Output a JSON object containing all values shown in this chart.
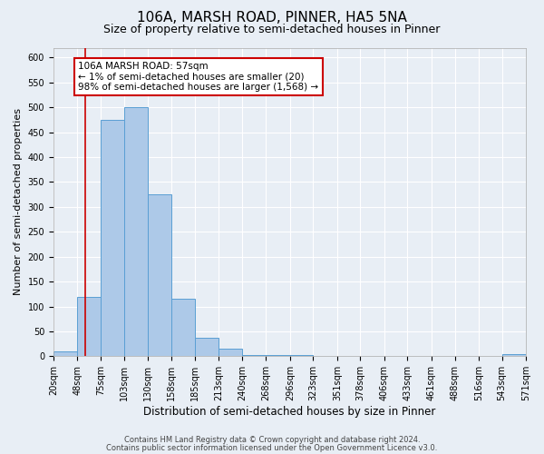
{
  "title": "106A, MARSH ROAD, PINNER, HA5 5NA",
  "subtitle": "Size of property relative to semi-detached houses in Pinner",
  "xlabel": "Distribution of semi-detached houses by size in Pinner",
  "ylabel": "Number of semi-detached properties",
  "bin_edges": [
    20,
    48,
    75,
    103,
    130,
    158,
    185,
    213,
    240,
    268,
    296,
    323,
    351,
    378,
    406,
    433,
    461,
    488,
    516,
    543,
    571
  ],
  "bar_heights": [
    10,
    120,
    475,
    500,
    325,
    115,
    38,
    15,
    2,
    2,
    2,
    1,
    1,
    1,
    1,
    1,
    1,
    1,
    1,
    5
  ],
  "bar_color": "#adc9e8",
  "bar_edgecolor": "#5a9fd4",
  "background_color": "#e8eef5",
  "grid_color": "#ffffff",
  "vline_x": 57,
  "vline_color": "#cc0000",
  "annotation_text": "106A MARSH ROAD: 57sqm\n← 1% of semi-detached houses are smaller (20)\n98% of semi-detached houses are larger (1,568) →",
  "annotation_box_color": "#cc0000",
  "ylim": [
    0,
    620
  ],
  "yticks": [
    0,
    50,
    100,
    150,
    200,
    250,
    300,
    350,
    400,
    450,
    500,
    550,
    600
  ],
  "footer_line1": "Contains HM Land Registry data © Crown copyright and database right 2024.",
  "footer_line2": "Contains public sector information licensed under the Open Government Licence v3.0.",
  "title_fontsize": 11,
  "subtitle_fontsize": 9,
  "xlabel_fontsize": 8.5,
  "ylabel_fontsize": 8,
  "tick_fontsize": 7,
  "annotation_fontsize": 7.5,
  "footer_fontsize": 6
}
